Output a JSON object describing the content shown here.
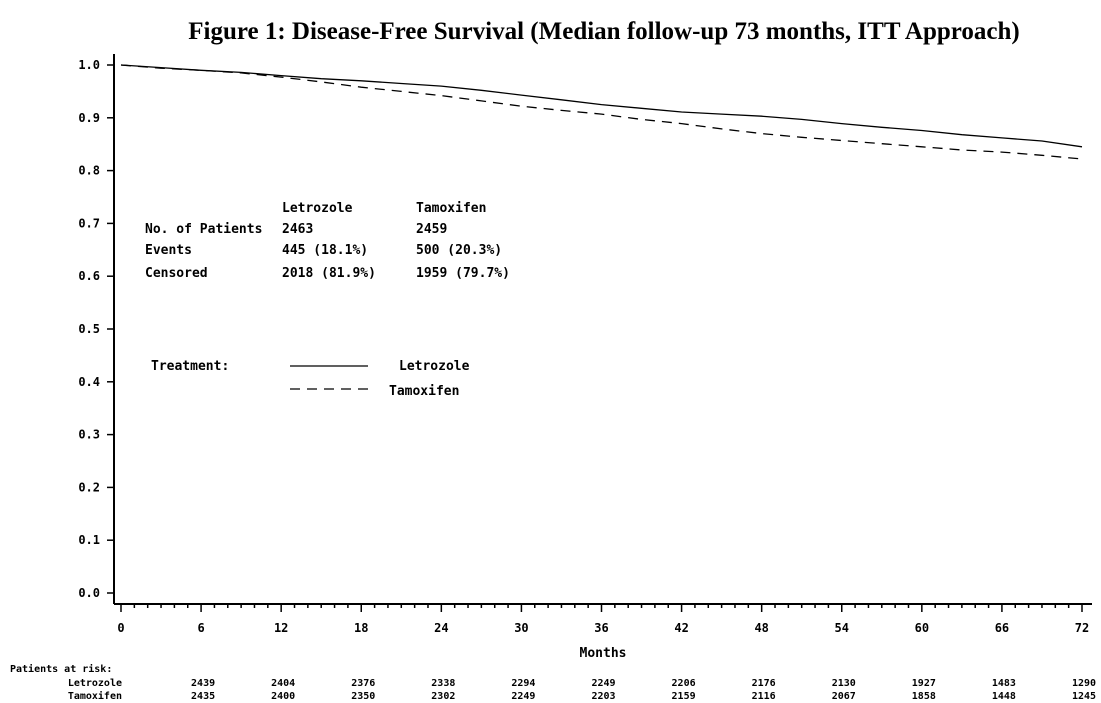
{
  "chart_data": {
    "type": "line",
    "title": "Figure 1: Disease-Free Survival (Median follow-up 73 months, ITT Approach)",
    "xlabel": "Months",
    "ylabel": "",
    "xlim": [
      0,
      72
    ],
    "ylim": [
      0,
      1
    ],
    "x_ticks": [
      "0",
      "6",
      "12",
      "18",
      "24",
      "30",
      "36",
      "42",
      "48",
      "54",
      "60",
      "66",
      "72"
    ],
    "y_ticks": [
      "0.0",
      "0.1",
      "0.2",
      "0.3",
      "0.4",
      "0.5",
      "0.6",
      "0.7",
      "0.8",
      "0.9",
      "1.0"
    ],
    "grid": false,
    "series": [
      {
        "name": "Letrozole",
        "line_style": "solid",
        "x": [
          0,
          3,
          6,
          9,
          12,
          15,
          18,
          21,
          24,
          27,
          30,
          33,
          36,
          39,
          42,
          45,
          48,
          51,
          54,
          57,
          60,
          63,
          66,
          69,
          72
        ],
        "y": [
          1.0,
          0.995,
          0.99,
          0.986,
          0.98,
          0.974,
          0.97,
          0.965,
          0.96,
          0.952,
          0.943,
          0.934,
          0.925,
          0.918,
          0.911,
          0.907,
          0.903,
          0.897,
          0.889,
          0.882,
          0.876,
          0.868,
          0.862,
          0.856,
          0.845
        ]
      },
      {
        "name": "Tamoxifen",
        "line_style": "dashed",
        "x": [
          0,
          3,
          6,
          9,
          12,
          15,
          18,
          21,
          24,
          27,
          30,
          33,
          36,
          39,
          42,
          45,
          48,
          51,
          54,
          57,
          60,
          63,
          66,
          69,
          72
        ],
        "y": [
          1.0,
          0.994,
          0.99,
          0.985,
          0.977,
          0.968,
          0.958,
          0.95,
          0.942,
          0.932,
          0.922,
          0.914,
          0.907,
          0.897,
          0.889,
          0.879,
          0.87,
          0.863,
          0.857,
          0.851,
          0.845,
          0.839,
          0.835,
          0.829,
          0.822
        ]
      }
    ],
    "summary_table": {
      "col_headers": [
        "Letrozole",
        "Tamoxifen"
      ],
      "rows": [
        {
          "label": "No. of Patients",
          "values": [
            "2463",
            "2459"
          ]
        },
        {
          "label": "Events",
          "values": [
            "445 (18.1%)",
            "500 (20.3%)"
          ]
        },
        {
          "label": "Censored",
          "values": [
            "2018 (81.9%)",
            "1959 (79.7%)"
          ]
        }
      ]
    },
    "legend": {
      "title": "Treatment:",
      "placement": "center-left",
      "entries": [
        "Letrozole",
        "Tamoxifen"
      ]
    },
    "risk_table": {
      "title": "Patients at risk:",
      "rows": [
        {
          "label": "Letrozole",
          "values": [
            "2439",
            "2404",
            "2376",
            "2338",
            "2294",
            "2249",
            "2206",
            "2176",
            "2130",
            "1927",
            "1483",
            "1290"
          ]
        },
        {
          "label": "Tamoxifen",
          "values": [
            "2435",
            "2400",
            "2350",
            "2302",
            "2249",
            "2203",
            "2159",
            "2116",
            "2067",
            "1858",
            "1448",
            "1245"
          ]
        }
      ]
    }
  }
}
